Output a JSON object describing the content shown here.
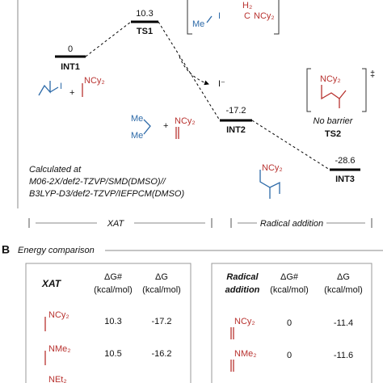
{
  "diagram": {
    "levels": [
      {
        "energy": "0",
        "label": "INT1"
      },
      {
        "energy": "10.3",
        "label": "TS1"
      },
      {
        "energy": "-17.2",
        "label": "INT2"
      },
      {
        "energy": "-28.6",
        "label": "INT3"
      }
    ],
    "ts2": {
      "note": "No barrier",
      "label": "TS2",
      "dagger": "‡"
    },
    "molecules": {
      "me": "Me",
      "amine": "NCy₂",
      "iodine": "I",
      "iodide": "I⁻",
      "plus": "+",
      "carbon": "C",
      "h2": "H₂"
    },
    "method": [
      "Calculated at",
      "M06-2X/def2-TZVP/SMD(DMSO)//",
      "B3LYP-D3/def2-TZVP/IEFPCM(DMSO)"
    ],
    "stages": [
      "XAT",
      "Radical addition"
    ]
  },
  "section_b": {
    "letter": "B",
    "title": "Energy comparison"
  },
  "tables": [
    {
      "header": [
        "XAT",
        "ΔG#",
        "(kcal/mol)",
        "ΔG",
        "(kcal/mol)"
      ],
      "rows": [
        [
          "NCy₂",
          "10.3",
          "-17.2"
        ],
        [
          "NMe₂",
          "10.5",
          "-16.2"
        ],
        [
          "NEt₂"
        ]
      ]
    },
    {
      "header": [
        "Radical",
        "addition",
        "ΔG#",
        "(kcal/mol)",
        "ΔG",
        "(kcal/mol)"
      ],
      "rows": [
        [
          "NCy₂",
          "0",
          "-11.4"
        ],
        [
          "NMe₂",
          "0",
          "-11.6"
        ]
      ]
    }
  ]
}
